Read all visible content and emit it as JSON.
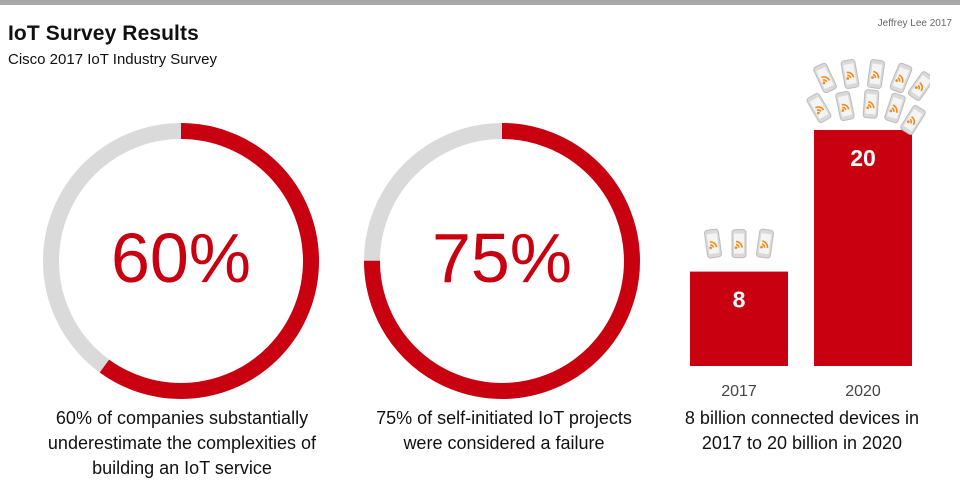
{
  "header": {
    "title": "IoT Survey Results",
    "subtitle": "Cisco 2017 IoT Industry Survey",
    "credit": "Jeffrey Lee 2017"
  },
  "colors": {
    "accent": "#c8000f",
    "track": "#dadada",
    "text": "#111111"
  },
  "stats": [
    {
      "value": 60,
      "label": "60%",
      "caption": "60% of companies substantially underestimate the complexities of building an IoT service"
    },
    {
      "value": 75,
      "label": "75%",
      "caption": "75% of self-initiated IoT projects were considered a failure"
    }
  ],
  "bar_caption": "8 billion connected devices in 2017 to 20 billion in 2020",
  "chart_data": [
    {
      "type": "pie",
      "title": "",
      "values": [
        60,
        40
      ],
      "labels": [
        "60%",
        ""
      ]
    },
    {
      "type": "pie",
      "title": "",
      "values": [
        75,
        25
      ],
      "labels": [
        "75%",
        ""
      ]
    },
    {
      "type": "bar",
      "categories": [
        "2017",
        "2020"
      ],
      "values": [
        8,
        20
      ],
      "data_labels": [
        "8",
        "20"
      ],
      "xlabel": "",
      "ylabel": "",
      "ylim": [
        0,
        20
      ],
      "icon": "connected-device-icon"
    }
  ]
}
